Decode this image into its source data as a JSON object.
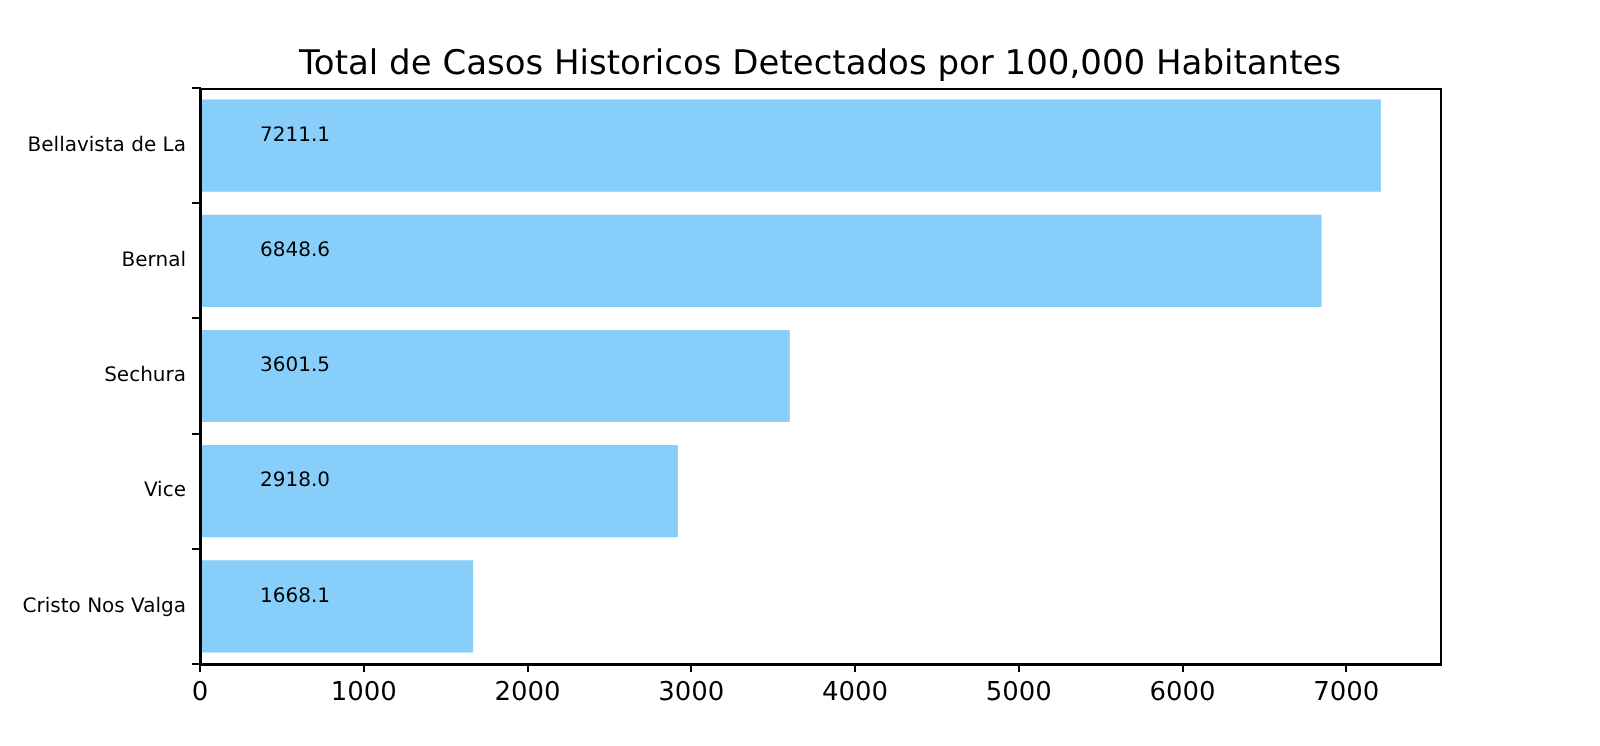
{
  "chart_data": {
    "type": "bar",
    "orientation": "horizontal",
    "title": "Total de Casos Historicos Detectados por 100,000 Habitantes",
    "categories": [
      "Bellavista de La",
      "Bernal",
      "Sechura",
      "Vice",
      "Cristo Nos Valga"
    ],
    "values": [
      7211.1,
      6848.6,
      3601.5,
      2918.0,
      1668.1
    ],
    "value_labels": [
      "7211.1",
      "6848.6",
      "3601.5",
      "2918.0",
      "1668.1"
    ],
    "color": "#87cefa",
    "xlim": [
      0,
      7572
    ],
    "xticks": [
      0,
      1000,
      2000,
      3000,
      4000,
      5000,
      6000,
      7000
    ],
    "grid": false,
    "legend": false
  }
}
